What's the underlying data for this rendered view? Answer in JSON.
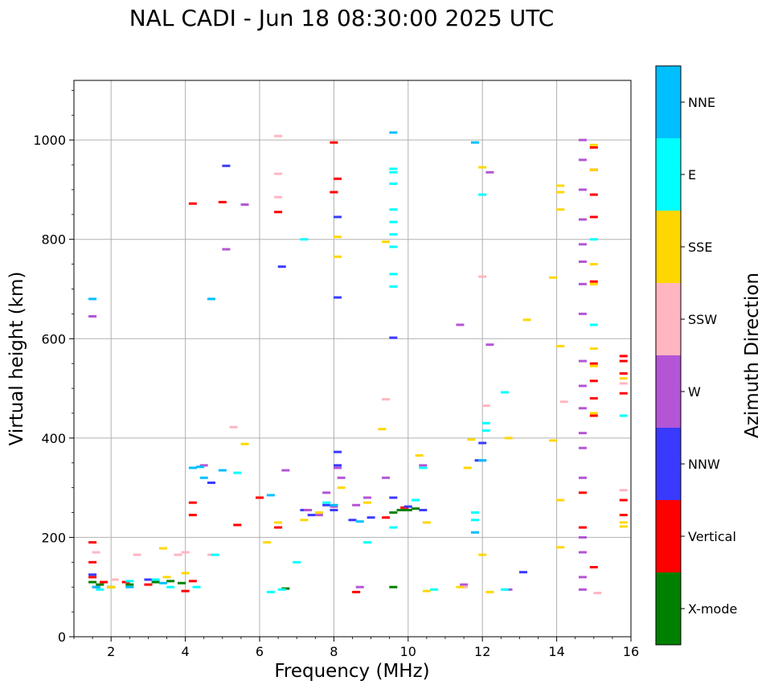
{
  "chart_data": {
    "type": "scatter",
    "title": "NAL CADI - Jun 18 08:30:00 2025 UTC",
    "xlabel": "Frequency (MHz)",
    "ylabel": "Virtual height (km)",
    "xlim": [
      1,
      16
    ],
    "ylim": [
      0,
      1120
    ],
    "xticks": [
      2,
      4,
      6,
      8,
      10,
      12,
      14,
      16
    ],
    "yticks": [
      0,
      200,
      400,
      600,
      800,
      1000
    ],
    "grid": true,
    "colorbar": {
      "label": "Azimuth Direction",
      "categories": [
        {
          "name": "X-mode",
          "color": "#008000"
        },
        {
          "name": "Vertical",
          "color": "#ff0000"
        },
        {
          "name": "NNW",
          "color": "#3a3aff"
        },
        {
          "name": "W",
          "color": "#b455d6"
        },
        {
          "name": "SSW",
          "color": "#ffb6c1"
        },
        {
          "name": "SSE",
          "color": "#ffd700"
        },
        {
          "name": "E",
          "color": "#00ffff"
        },
        {
          "name": "NNE",
          "color": "#00bfff"
        }
      ]
    },
    "series": [
      {
        "name": "X-mode",
        "color": "#008000",
        "points": [
          [
            1.5,
            110
          ],
          [
            1.7,
            105
          ],
          [
            2.0,
            100
          ],
          [
            2.5,
            105
          ],
          [
            3.2,
            110
          ],
          [
            3.6,
            112
          ],
          [
            3.9,
            108
          ],
          [
            9.6,
            100
          ],
          [
            9.6,
            250
          ],
          [
            9.8,
            255
          ],
          [
            10.0,
            255
          ],
          [
            10.2,
            258
          ],
          [
            6.7,
            97
          ]
        ]
      },
      {
        "name": "Vertical",
        "color": "#ff0000",
        "points": [
          [
            1.5,
            190
          ],
          [
            1.5,
            150
          ],
          [
            1.5,
            120
          ],
          [
            1.6,
            100
          ],
          [
            1.8,
            110
          ],
          [
            2.4,
            110
          ],
          [
            3.0,
            105
          ],
          [
            4.0,
            92
          ],
          [
            4.2,
            112
          ],
          [
            4.2,
            245
          ],
          [
            4.2,
            270
          ],
          [
            4.2,
            872
          ],
          [
            5.0,
            875
          ],
          [
            5.4,
            225
          ],
          [
            6.0,
            280
          ],
          [
            6.5,
            855
          ],
          [
            6.5,
            220
          ],
          [
            8.0,
            995
          ],
          [
            8.0,
            895
          ],
          [
            8.1,
            922
          ],
          [
            8.6,
            90
          ],
          [
            9.4,
            240
          ],
          [
            9.9,
            260
          ],
          [
            14.7,
            290
          ],
          [
            14.7,
            220
          ],
          [
            15.0,
            140
          ],
          [
            15.0,
            445
          ],
          [
            15.0,
            480
          ],
          [
            15.0,
            515
          ],
          [
            15.0,
            550
          ],
          [
            15.0,
            715
          ],
          [
            15.0,
            845
          ],
          [
            15.0,
            890
          ],
          [
            15.0,
            940
          ],
          [
            15.0,
            985
          ],
          [
            15.8,
            565
          ],
          [
            15.8,
            555
          ],
          [
            15.8,
            530
          ],
          [
            15.8,
            490
          ],
          [
            15.8,
            275
          ],
          [
            15.8,
            245
          ]
        ]
      },
      {
        "name": "NNW",
        "color": "#3a3aff",
        "points": [
          [
            1.5,
            125
          ],
          [
            3.0,
            115
          ],
          [
            4.7,
            310
          ],
          [
            5.1,
            948
          ],
          [
            6.6,
            745
          ],
          [
            7.2,
            255
          ],
          [
            7.4,
            245
          ],
          [
            7.8,
            265
          ],
          [
            8.0,
            255
          ],
          [
            8.1,
            372
          ],
          [
            8.1,
            345
          ],
          [
            8.1,
            845
          ],
          [
            8.1,
            683
          ],
          [
            8.5,
            235
          ],
          [
            9.0,
            240
          ],
          [
            9.6,
            280
          ],
          [
            9.6,
            602
          ],
          [
            10.0,
            262
          ],
          [
            10.4,
            255
          ],
          [
            11.9,
            355
          ],
          [
            12.0,
            390
          ],
          [
            13.1,
            130
          ]
        ]
      },
      {
        "name": "W",
        "color": "#b455d6",
        "points": [
          [
            1.5,
            645
          ],
          [
            4.5,
            345
          ],
          [
            5.1,
            780
          ],
          [
            5.6,
            870
          ],
          [
            6.7,
            335
          ],
          [
            7.3,
            255
          ],
          [
            7.6,
            245
          ],
          [
            7.8,
            290
          ],
          [
            8.0,
            262
          ],
          [
            8.1,
            340
          ],
          [
            8.2,
            320
          ],
          [
            8.6,
            265
          ],
          [
            8.7,
            100
          ],
          [
            8.9,
            280
          ],
          [
            9.4,
            320
          ],
          [
            10.4,
            345
          ],
          [
            11.4,
            628
          ],
          [
            11.5,
            105
          ],
          [
            12.0,
            355
          ],
          [
            12.2,
            588
          ],
          [
            12.2,
            935
          ],
          [
            12.7,
            95
          ],
          [
            14.7,
            95
          ],
          [
            14.7,
            120
          ],
          [
            14.7,
            170
          ],
          [
            14.7,
            200
          ],
          [
            14.7,
            320
          ],
          [
            14.7,
            380
          ],
          [
            14.7,
            410
          ],
          [
            14.7,
            460
          ],
          [
            14.7,
            505
          ],
          [
            14.7,
            555
          ],
          [
            14.7,
            650
          ],
          [
            14.7,
            710
          ],
          [
            14.7,
            755
          ],
          [
            14.7,
            790
          ],
          [
            14.7,
            840
          ],
          [
            14.7,
            900
          ],
          [
            14.7,
            960
          ],
          [
            14.7,
            1000
          ]
        ]
      },
      {
        "name": "SSW",
        "color": "#ffb6c1",
        "points": [
          [
            1.6,
            170
          ],
          [
            2.1,
            115
          ],
          [
            2.7,
            165
          ],
          [
            3.8,
            165
          ],
          [
            4.0,
            170
          ],
          [
            4.7,
            165
          ],
          [
            5.3,
            422
          ],
          [
            6.5,
            885
          ],
          [
            6.5,
            1008
          ],
          [
            6.5,
            932
          ],
          [
            9.4,
            478
          ],
          [
            11.5,
            100
          ],
          [
            12.1,
            465
          ],
          [
            12.0,
            725
          ],
          [
            14.2,
            473
          ],
          [
            15.1,
            88
          ],
          [
            15.8,
            295
          ],
          [
            15.8,
            510
          ]
        ]
      },
      {
        "name": "SSE",
        "color": "#ffd700",
        "points": [
          [
            2.0,
            100
          ],
          [
            3.4,
            178
          ],
          [
            3.5,
            120
          ],
          [
            4.0,
            128
          ],
          [
            5.6,
            388
          ],
          [
            6.2,
            190
          ],
          [
            6.5,
            230
          ],
          [
            7.2,
            235
          ],
          [
            7.6,
            250
          ],
          [
            8.1,
            765
          ],
          [
            8.1,
            805
          ],
          [
            8.2,
            300
          ],
          [
            8.9,
            270
          ],
          [
            9.3,
            418
          ],
          [
            9.4,
            795
          ],
          [
            10.3,
            365
          ],
          [
            10.5,
            230
          ],
          [
            10.5,
            92
          ],
          [
            11.4,
            100
          ],
          [
            11.7,
            397
          ],
          [
            11.6,
            340
          ],
          [
            12.0,
            165
          ],
          [
            12.0,
            945
          ],
          [
            12.2,
            90
          ],
          [
            12.7,
            400
          ],
          [
            13.2,
            638
          ],
          [
            13.9,
            723
          ],
          [
            13.9,
            395
          ],
          [
            14.1,
            908
          ],
          [
            14.1,
            895
          ],
          [
            14.1,
            860
          ],
          [
            14.1,
            585
          ],
          [
            14.1,
            275
          ],
          [
            14.1,
            180
          ],
          [
            15.0,
            450
          ],
          [
            15.0,
            545
          ],
          [
            15.0,
            580
          ],
          [
            15.0,
            710
          ],
          [
            15.0,
            750
          ],
          [
            15.0,
            940
          ],
          [
            15.0,
            990
          ],
          [
            15.8,
            520
          ],
          [
            15.8,
            230
          ],
          [
            15.8,
            222
          ]
        ]
      },
      {
        "name": "E",
        "color": "#00ffff",
        "points": [
          [
            1.7,
            95
          ],
          [
            2.5,
            112
          ],
          [
            3.2,
            115
          ],
          [
            3.6,
            100
          ],
          [
            4.3,
            100
          ],
          [
            4.8,
            165
          ],
          [
            5.4,
            330
          ],
          [
            6.3,
            90
          ],
          [
            6.6,
            95
          ],
          [
            7.0,
            150
          ],
          [
            7.2,
            800
          ],
          [
            7.8,
            270
          ],
          [
            8.9,
            190
          ],
          [
            9.6,
            220
          ],
          [
            9.6,
            705
          ],
          [
            9.6,
            730
          ],
          [
            9.6,
            785
          ],
          [
            9.6,
            810
          ],
          [
            9.6,
            835
          ],
          [
            9.6,
            860
          ],
          [
            9.6,
            912
          ],
          [
            9.6,
            935
          ],
          [
            9.6,
            942
          ],
          [
            10.2,
            275
          ],
          [
            10.4,
            340
          ],
          [
            10.7,
            95
          ],
          [
            11.8,
            250
          ],
          [
            11.8,
            235
          ],
          [
            12.1,
            430
          ],
          [
            12.1,
            415
          ],
          [
            12.0,
            890
          ],
          [
            12.6,
            492
          ],
          [
            12.6,
            95
          ],
          [
            15.0,
            800
          ],
          [
            15.0,
            628
          ],
          [
            15.8,
            445
          ]
        ]
      },
      {
        "name": "NNE",
        "color": "#00bfff",
        "points": [
          [
            1.5,
            680
          ],
          [
            1.6,
            100
          ],
          [
            2.5,
            100
          ],
          [
            3.4,
            108
          ],
          [
            4.2,
            340
          ],
          [
            4.4,
            342
          ],
          [
            4.5,
            320
          ],
          [
            4.7,
            680
          ],
          [
            5.0,
            335
          ],
          [
            6.3,
            285
          ],
          [
            8.0,
            265
          ],
          [
            8.7,
            232
          ],
          [
            9.6,
            1015
          ],
          [
            11.8,
            995
          ],
          [
            11.8,
            210
          ],
          [
            12.0,
            355
          ]
        ]
      }
    ]
  }
}
